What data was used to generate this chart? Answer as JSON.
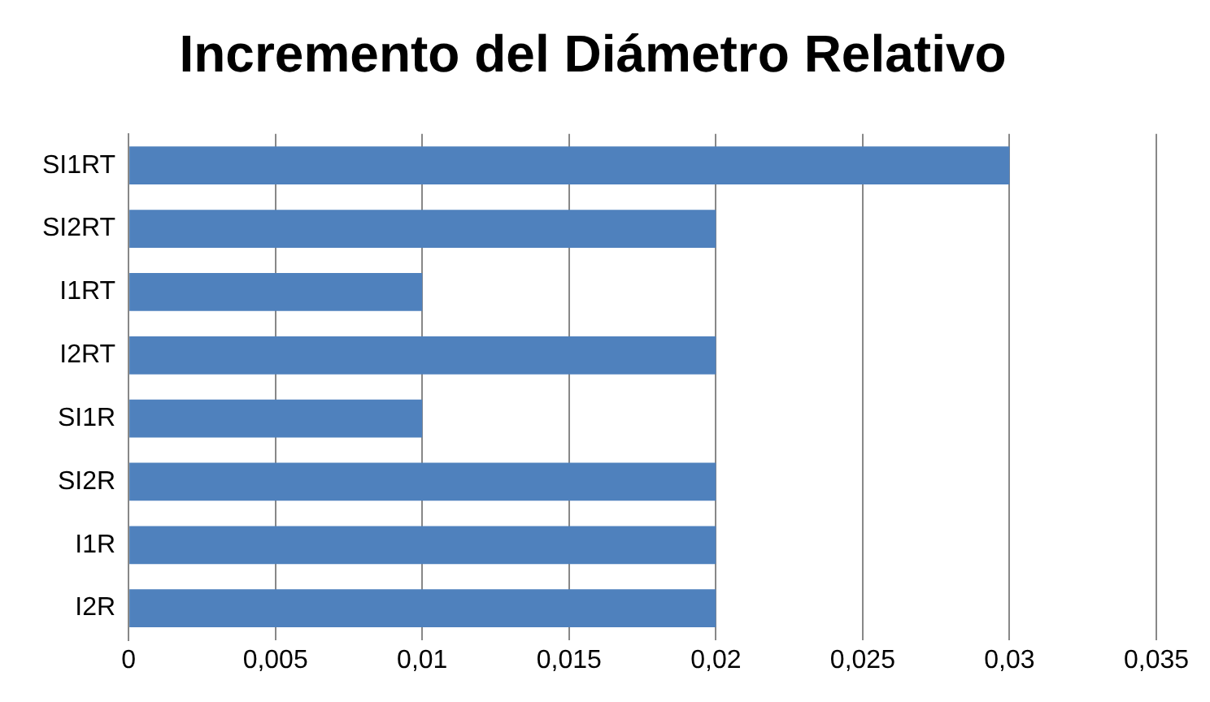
{
  "chart_data": {
    "type": "bar",
    "orientation": "horizontal",
    "title": "Incremento del Diámetro Relativo",
    "categories": [
      "SI1RT",
      "SI2RT",
      "I1RT",
      "I2RT",
      "SI1R",
      "SI2R",
      "I1R",
      "I2R"
    ],
    "values": [
      0.03,
      0.02,
      0.01,
      0.02,
      0.01,
      0.02,
      0.02,
      0.02
    ],
    "color": "#4f81bd",
    "xlim": [
      0,
      0.035
    ],
    "xticks": [
      0,
      {
        "value": 0.005,
        "label": "0,005"
      },
      {
        "value": 0.01,
        "label": "0,01"
      },
      {
        "value": 0.015,
        "label": "0,015"
      },
      {
        "value": 0.02,
        "label": "0,02"
      },
      {
        "value": 0.025,
        "label": "0,025"
      },
      {
        "value": 0.03,
        "label": "0,03"
      },
      {
        "value": 0.035,
        "label": "0,035"
      }
    ],
    "grid": "x",
    "legend": false
  }
}
